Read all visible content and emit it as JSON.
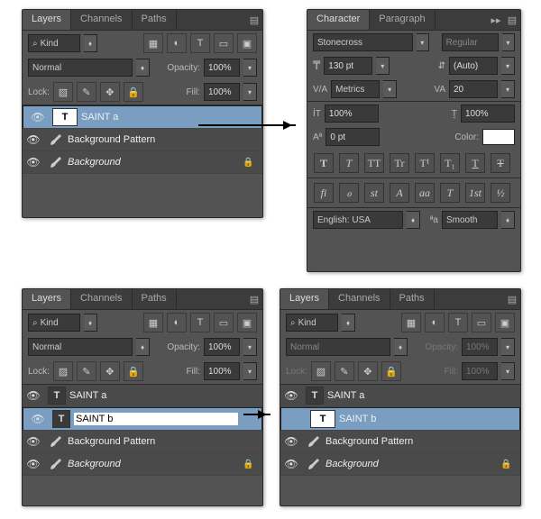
{
  "p1": {
    "tabs": [
      "Layers",
      "Channels",
      "Paths"
    ],
    "kind": "Kind",
    "blend": "Normal",
    "opL": "Opacity:",
    "op": "100%",
    "lockL": "Lock:",
    "fillL": "Fill:",
    "fill": "100%",
    "layers": [
      {
        "n": "SAINT a",
        "t": "T",
        "sel": true,
        "eye": true
      },
      {
        "n": "Background Pattern",
        "t": "B",
        "eye": true
      },
      {
        "n": "Background",
        "t": "B",
        "it": true,
        "lk": true,
        "eye": true
      }
    ]
  },
  "p2": {
    "tabs": [
      "Character",
      "Paragraph"
    ],
    "font": "Stonecross",
    "style": "Regular",
    "size": "130 pt",
    "lead": "(Auto)",
    "kern": "Metrics",
    "track": "20",
    "vs": "100%",
    "hs": "100%",
    "base": "0 pt",
    "colL": "Color:",
    "ot": [
      "T",
      "T",
      "TT",
      "Tr",
      "T¹",
      "T₁",
      "T",
      "Ŧ"
    ],
    "ot2": [
      "fi",
      "ℴ",
      "st",
      "A",
      "aa",
      "T",
      "1st",
      "½"
    ],
    "lang": "English: USA",
    "aa": "Smooth"
  },
  "p3": {
    "layers": [
      {
        "n": "SAINT a",
        "t": "T",
        "eye": true
      },
      {
        "n": "SAINT b",
        "t": "T",
        "sel": true,
        "ed": true,
        "eye": true
      },
      {
        "n": "Background Pattern",
        "t": "B",
        "eye": true
      },
      {
        "n": "Background",
        "t": "B",
        "it": true,
        "lk": true,
        "eye": true
      }
    ]
  },
  "p4": {
    "layers": [
      {
        "n": "SAINT a",
        "t": "T",
        "eye": true
      },
      {
        "n": "SAINT b",
        "t": "T",
        "sel": true,
        "eye": false
      },
      {
        "n": "Background Pattern",
        "t": "B",
        "eye": true
      },
      {
        "n": "Background",
        "t": "B",
        "it": true,
        "lk": true,
        "eye": true
      }
    ]
  }
}
